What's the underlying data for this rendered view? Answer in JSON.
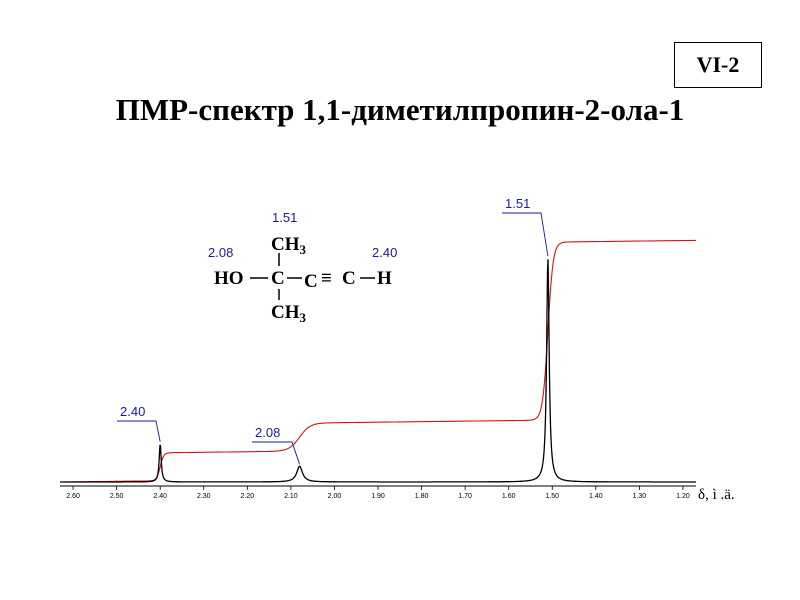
{
  "badge": "VI-2",
  "title": "ПМР-спектр 1,1-диметилпропин-2-ола-1",
  "molecule": {
    "ho": "HO",
    "c_center": "C",
    "c_alkyne1": "C",
    "triple_bond": "≡",
    "c_alkyne2": "C",
    "h": "H",
    "ch3_top": "CH",
    "ch3_top_sub": "3",
    "ch3_bottom": "CH",
    "ch3_bottom_sub": "3",
    "label_ch3": "1.51",
    "label_oh": "2.08",
    "label_ch": "2.40"
  },
  "chart_data": {
    "type": "line",
    "x_unit_label": "δ, ì .ä.",
    "x_ticks": [
      "2.60",
      "2.50",
      "2.40",
      "2.30",
      "2.20",
      "2.10",
      "2.00",
      "1.90",
      "1.80",
      "1.70",
      "1.60",
      "1.50",
      "1.40",
      "1.30",
      "1.20"
    ],
    "xlim": [
      2.63,
      1.17
    ],
    "x_reversed": true,
    "series": [
      {
        "color": "#000000",
        "kind": "spectrum"
      },
      {
        "color": "#e01010",
        "kind": "integral"
      }
    ],
    "peaks": [
      {
        "shift": 2.4,
        "label": "2.40",
        "height": 0.17
      },
      {
        "shift": 2.08,
        "label": "2.08",
        "height": 0.07
      },
      {
        "shift": 1.51,
        "label": "1.51",
        "height": 1.0
      }
    ]
  }
}
